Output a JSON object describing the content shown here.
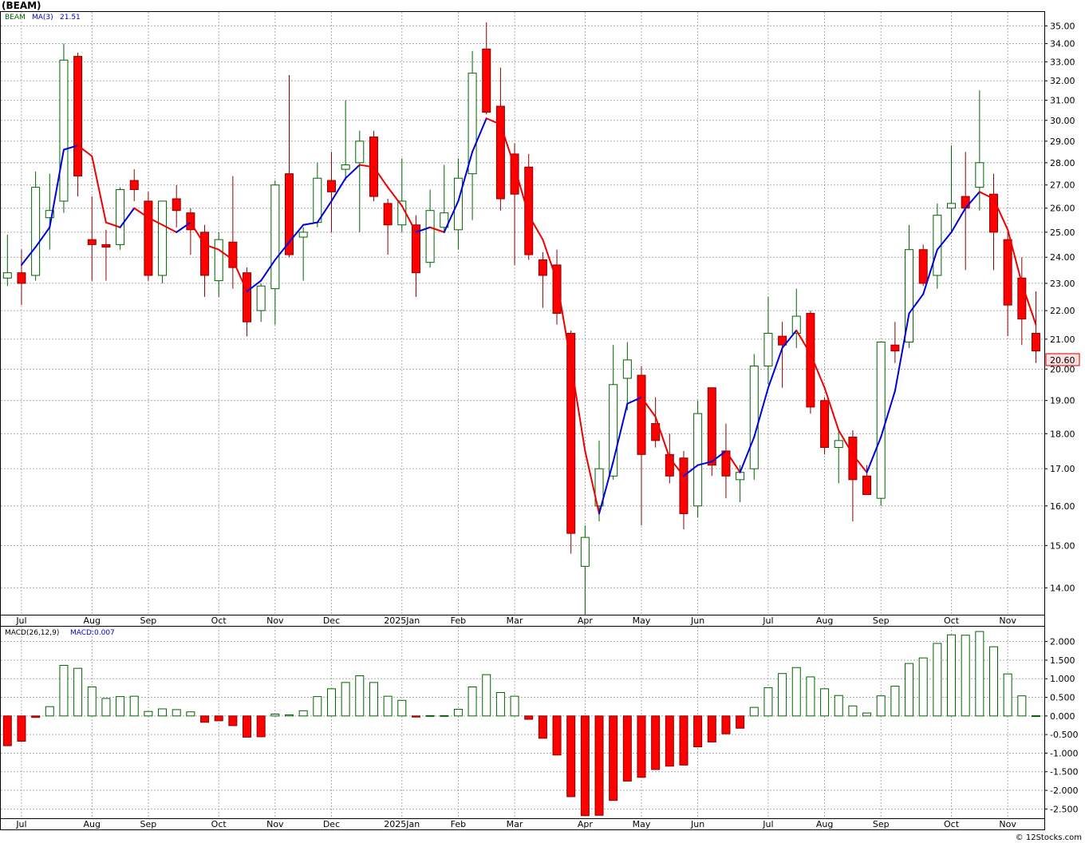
{
  "title": "(BEAM)",
  "credit": "© 12Stocks.com",
  "colors": {
    "up": "#006400",
    "down_fill": "#ff0000",
    "down_stroke": "#8b0000",
    "ma_up": "#0000dd",
    "ma_down": "#ee0000",
    "legend_ticker": "#006400",
    "legend_ma": "#0000cc",
    "grid": "#aaaaaa",
    "last_price_bg": "#ffe0e0",
    "last_price_text": "#cc0000"
  },
  "chart_data": [
    {
      "type": "candlestick",
      "ticker": "BEAM",
      "ma_label": "MA(3)",
      "ma_value": "21.51",
      "last_price": "20.60",
      "ylim": [
        13.4,
        35.8
      ],
      "y_scale": "log",
      "y_ticks": [
        "14.00",
        "15.00",
        "16.00",
        "17.00",
        "18.00",
        "19.00",
        "20.00",
        "21.00",
        "22.00",
        "23.00",
        "24.00",
        "25.00",
        "26.00",
        "27.00",
        "28.00",
        "29.00",
        "30.00",
        "31.00",
        "32.00",
        "33.00",
        "34.00",
        "35.00"
      ],
      "x_labels": [
        {
          "label": "Jul",
          "i": 1
        },
        {
          "label": "Aug",
          "i": 6
        },
        {
          "label": "Sep",
          "i": 10
        },
        {
          "label": "Oct",
          "i": 15
        },
        {
          "label": "Nov",
          "i": 19
        },
        {
          "label": "Dec",
          "i": 23
        },
        {
          "label": "2025Jan",
          "i": 28
        },
        {
          "label": "Feb",
          "i": 32
        },
        {
          "label": "Mar",
          "i": 36
        },
        {
          "label": "Apr",
          "i": 41
        },
        {
          "label": "May",
          "i": 45
        },
        {
          "label": "Jun",
          "i": 49
        },
        {
          "label": "Jul",
          "i": 54
        },
        {
          "label": "Aug",
          "i": 58
        },
        {
          "label": "Sep",
          "i": 62
        },
        {
          "label": "Oct",
          "i": 67
        },
        {
          "label": "Nov",
          "i": 71
        }
      ],
      "candles": [
        {
          "o": 23.2,
          "h": 24.9,
          "l": 22.9,
          "c": 23.4
        },
        {
          "o": 23.4,
          "h": 24.3,
          "l": 22.2,
          "c": 23.0
        },
        {
          "o": 23.3,
          "h": 27.6,
          "l": 23.1,
          "c": 26.9
        },
        {
          "o": 25.6,
          "h": 27.5,
          "l": 24.3,
          "c": 25.9
        },
        {
          "o": 26.3,
          "h": 34.0,
          "l": 25.8,
          "c": 33.1
        },
        {
          "o": 33.3,
          "h": 33.5,
          "l": 26.5,
          "c": 27.4
        },
        {
          "o": 24.7,
          "h": 26.5,
          "l": 23.1,
          "c": 24.5
        },
        {
          "o": 24.5,
          "h": 25.1,
          "l": 23.1,
          "c": 24.4
        },
        {
          "o": 24.5,
          "h": 26.9,
          "l": 24.3,
          "c": 26.8
        },
        {
          "o": 27.2,
          "h": 27.7,
          "l": 26.3,
          "c": 26.8
        },
        {
          "o": 26.3,
          "h": 26.7,
          "l": 23.1,
          "c": 23.3
        },
        {
          "o": 23.3,
          "h": 26.3,
          "l": 23.0,
          "c": 26.3
        },
        {
          "o": 26.4,
          "h": 27.0,
          "l": 25.2,
          "c": 25.9
        },
        {
          "o": 25.8,
          "h": 26.0,
          "l": 24.1,
          "c": 25.1
        },
        {
          "o": 25.0,
          "h": 25.3,
          "l": 22.5,
          "c": 23.3
        },
        {
          "o": 23.1,
          "h": 25.0,
          "l": 22.5,
          "c": 24.7
        },
        {
          "o": 24.6,
          "h": 27.4,
          "l": 22.8,
          "c": 23.6
        },
        {
          "o": 23.4,
          "h": 23.6,
          "l": 21.1,
          "c": 21.6
        },
        {
          "o": 22.0,
          "h": 23.0,
          "l": 21.6,
          "c": 22.9
        },
        {
          "o": 22.8,
          "h": 27.2,
          "l": 21.5,
          "c": 27.0
        },
        {
          "o": 27.5,
          "h": 32.3,
          "l": 24.0,
          "c": 24.1
        },
        {
          "o": 24.8,
          "h": 25.2,
          "l": 23.1,
          "c": 25.0
        },
        {
          "o": 25.4,
          "h": 28.0,
          "l": 25.2,
          "c": 27.3
        },
        {
          "o": 27.2,
          "h": 28.5,
          "l": 25.0,
          "c": 26.7
        },
        {
          "o": 27.7,
          "h": 31.0,
          "l": 27.2,
          "c": 27.9
        },
        {
          "o": 28.0,
          "h": 29.5,
          "l": 25.0,
          "c": 29.0
        },
        {
          "o": 29.2,
          "h": 29.5,
          "l": 26.3,
          "c": 26.5
        },
        {
          "o": 26.2,
          "h": 26.4,
          "l": 24.1,
          "c": 25.3
        },
        {
          "o": 25.3,
          "h": 28.2,
          "l": 25.0,
          "c": 26.3
        },
        {
          "o": 25.3,
          "h": 25.7,
          "l": 22.5,
          "c": 23.4
        },
        {
          "o": 23.8,
          "h": 26.8,
          "l": 23.6,
          "c": 25.9
        },
        {
          "o": 25.2,
          "h": 27.9,
          "l": 25.0,
          "c": 25.8
        },
        {
          "o": 25.1,
          "h": 28.2,
          "l": 24.3,
          "c": 27.3
        },
        {
          "o": 27.5,
          "h": 33.6,
          "l": 25.5,
          "c": 32.4
        },
        {
          "o": 33.7,
          "h": 35.2,
          "l": 30.3,
          "c": 30.4
        },
        {
          "o": 30.7,
          "h": 32.7,
          "l": 25.9,
          "c": 26.4
        },
        {
          "o": 28.4,
          "h": 28.9,
          "l": 23.7,
          "c": 26.6
        },
        {
          "o": 27.8,
          "h": 28.4,
          "l": 23.9,
          "c": 24.1
        },
        {
          "o": 23.9,
          "h": 24.2,
          "l": 22.1,
          "c": 23.3
        },
        {
          "o": 23.7,
          "h": 24.3,
          "l": 21.5,
          "c": 21.9
        },
        {
          "o": 21.2,
          "h": 21.3,
          "l": 14.8,
          "c": 15.3
        },
        {
          "o": 14.5,
          "h": 15.5,
          "l": 13.4,
          "c": 15.2
        },
        {
          "o": 16.0,
          "h": 17.8,
          "l": 15.6,
          "c": 17.0
        },
        {
          "o": 16.8,
          "h": 20.8,
          "l": 16.7,
          "c": 19.5
        },
        {
          "o": 19.7,
          "h": 20.9,
          "l": 18.7,
          "c": 20.3
        },
        {
          "o": 19.8,
          "h": 20.1,
          "l": 15.5,
          "c": 17.4
        },
        {
          "o": 18.3,
          "h": 19.1,
          "l": 17.6,
          "c": 17.8
        },
        {
          "o": 17.4,
          "h": 18.0,
          "l": 16.6,
          "c": 16.8
        },
        {
          "o": 17.3,
          "h": 17.5,
          "l": 15.4,
          "c": 15.8
        },
        {
          "o": 16.0,
          "h": 19.0,
          "l": 15.7,
          "c": 18.6
        },
        {
          "o": 19.4,
          "h": 19.4,
          "l": 16.8,
          "c": 17.1
        },
        {
          "o": 17.5,
          "h": 18.3,
          "l": 16.2,
          "c": 16.8
        },
        {
          "o": 16.7,
          "h": 17.1,
          "l": 16.1,
          "c": 16.9
        },
        {
          "o": 17.0,
          "h": 20.5,
          "l": 16.7,
          "c": 20.1
        },
        {
          "o": 20.1,
          "h": 22.5,
          "l": 19.5,
          "c": 21.2
        },
        {
          "o": 21.1,
          "h": 21.6,
          "l": 19.4,
          "c": 20.8
        },
        {
          "o": 21.2,
          "h": 22.8,
          "l": 20.7,
          "c": 21.8
        },
        {
          "o": 21.9,
          "h": 22.0,
          "l": 18.6,
          "c": 18.8
        },
        {
          "o": 19.0,
          "h": 19.1,
          "l": 17.4,
          "c": 17.6
        },
        {
          "o": 17.6,
          "h": 18.1,
          "l": 16.6,
          "c": 17.8
        },
        {
          "o": 17.9,
          "h": 18.1,
          "l": 15.6,
          "c": 16.7
        },
        {
          "o": 16.8,
          "h": 17.1,
          "l": 16.3,
          "c": 16.3
        },
        {
          "o": 16.2,
          "h": 20.9,
          "l": 16.0,
          "c": 20.9
        },
        {
          "o": 20.8,
          "h": 21.6,
          "l": 20.2,
          "c": 20.6
        },
        {
          "o": 20.9,
          "h": 25.3,
          "l": 20.7,
          "c": 24.3
        },
        {
          "o": 24.3,
          "h": 24.5,
          "l": 22.9,
          "c": 23.0
        },
        {
          "o": 23.3,
          "h": 26.2,
          "l": 22.8,
          "c": 25.7
        },
        {
          "o": 26.0,
          "h": 28.8,
          "l": 25.0,
          "c": 26.2
        },
        {
          "o": 26.5,
          "h": 28.5,
          "l": 23.5,
          "c": 26.0
        },
        {
          "o": 26.9,
          "h": 31.5,
          "l": 25.9,
          "c": 28.0
        },
        {
          "o": 26.6,
          "h": 27.5,
          "l": 23.5,
          "c": 25.0
        },
        {
          "o": 24.7,
          "h": 25.0,
          "l": 21.1,
          "c": 22.2
        },
        {
          "o": 23.2,
          "h": 24.0,
          "l": 20.8,
          "c": 21.7
        },
        {
          "o": 21.2,
          "h": 22.7,
          "l": 20.2,
          "c": 20.6
        }
      ],
      "ma": [
        null,
        23.7,
        24.4,
        25.2,
        28.6,
        28.8,
        28.3,
        25.4,
        25.2,
        26.0,
        25.6,
        25.3,
        25.0,
        25.4,
        24.5,
        24.3,
        23.9,
        22.7,
        23.1,
        23.9,
        24.6,
        25.3,
        25.4,
        26.3,
        27.3,
        27.9,
        27.8,
        26.9,
        26.1,
        25.0,
        25.2,
        25.0,
        26.3,
        28.5,
        30.1,
        29.8,
        27.8,
        25.7,
        24.7,
        23.1,
        20.2,
        17.5,
        15.8,
        17.2,
        18.9,
        19.1,
        18.5,
        17.3,
        16.8,
        17.1,
        17.2,
        17.5,
        16.9,
        17.9,
        19.4,
        20.7,
        21.3,
        20.5,
        19.4,
        18.1,
        17.4,
        16.9,
        17.9,
        19.3,
        21.9,
        22.6,
        24.3,
        25.0,
        26.0,
        26.7,
        26.4,
        25.1,
        23.0,
        21.5
      ]
    },
    {
      "type": "bar",
      "label": "MACD(26,12,9)",
      "value_label": "MACD:0.007",
      "ylim": [
        -2.75,
        2.4
      ],
      "y_ticks": [
        "2.000",
        "1.500",
        "1.000",
        "0.500",
        "0.000",
        "-0.500",
        "-1.000",
        "-1.500",
        "-2.000",
        "-2.500"
      ],
      "values": [
        -0.8,
        -0.68,
        -0.04,
        0.25,
        1.36,
        1.28,
        0.78,
        0.47,
        0.52,
        0.53,
        0.12,
        0.19,
        0.17,
        0.11,
        -0.17,
        -0.13,
        -0.26,
        -0.57,
        -0.56,
        0.05,
        0.03,
        0.14,
        0.52,
        0.73,
        0.9,
        1.08,
        0.9,
        0.53,
        0.42,
        -0.03,
        0.01,
        0.01,
        0.18,
        0.78,
        1.11,
        0.63,
        0.53,
        -0.09,
        -0.6,
        -1.05,
        -2.17,
        -2.68,
        -2.67,
        -2.27,
        -1.75,
        -1.65,
        -1.44,
        -1.35,
        -1.32,
        -0.83,
        -0.7,
        -0.48,
        -0.33,
        0.23,
        0.76,
        1.14,
        1.3,
        1.05,
        0.73,
        0.55,
        0.27,
        0.08,
        0.54,
        0.8,
        1.41,
        1.56,
        1.95,
        2.18,
        2.17,
        2.27,
        1.86,
        1.13,
        0.54,
        0.007
      ]
    }
  ]
}
